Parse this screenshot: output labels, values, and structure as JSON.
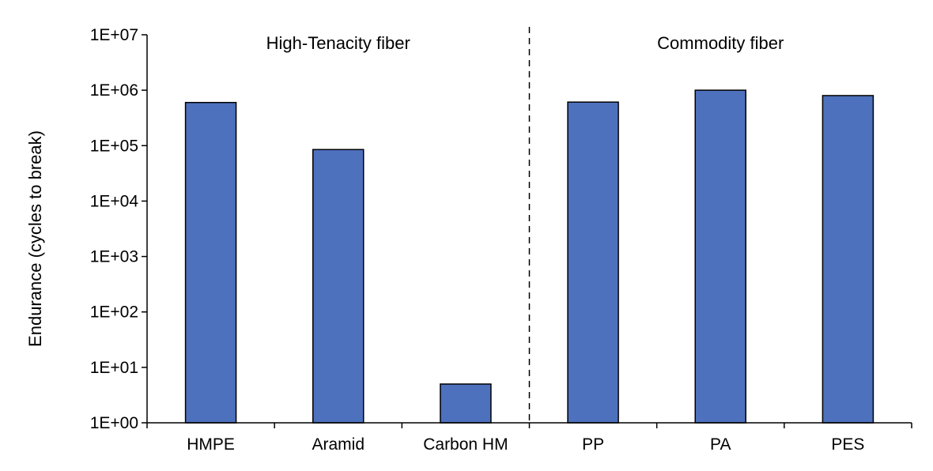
{
  "chart_data": {
    "type": "bar",
    "scale": "log",
    "categories": [
      "HMPE",
      "Aramid",
      "Carbon HM",
      "PP",
      "PA",
      "PES"
    ],
    "values": [
      600000,
      85000,
      5,
      610000,
      1000000,
      800000
    ],
    "ylabel": "Endurance (cycles to break)",
    "ylim": [
      1,
      10000000
    ],
    "yticks": [
      {
        "value": 1,
        "label": "1E+00"
      },
      {
        "value": 10,
        "label": "1E+01"
      },
      {
        "value": 100,
        "label": "1E+02"
      },
      {
        "value": 1000,
        "label": "1E+03"
      },
      {
        "value": 10000,
        "label": "1E+04"
      },
      {
        "value": 100000,
        "label": "1E+05"
      },
      {
        "value": 1000000,
        "label": "1E+06"
      },
      {
        "value": 10000000,
        "label": "1E+07"
      }
    ],
    "groups": [
      {
        "label": "High-Tenacity fiber",
        "categories": [
          "HMPE",
          "Aramid",
          "Carbon HM"
        ]
      },
      {
        "label": "Commodity fiber",
        "categories": [
          "PP",
          "PA",
          "PES"
        ]
      }
    ],
    "bar_color": "#4E71BE",
    "grid": false,
    "legend": false
  }
}
